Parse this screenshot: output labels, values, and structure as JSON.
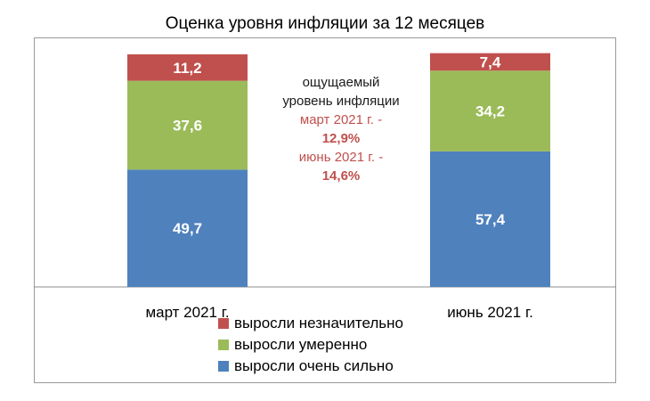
{
  "chart_data": {
    "type": "bar",
    "stacked": true,
    "title": "Оценка уровня инфляции за 12 месяцев",
    "categories": [
      "март 2021 г.",
      "июнь 2021 г."
    ],
    "series": [
      {
        "name": "выросли очень сильно",
        "values": [
          49.7,
          57.4
        ],
        "labels": [
          "49,7",
          "57,4"
        ],
        "color": "#4f81bd"
      },
      {
        "name": "выросли умеренно",
        "values": [
          37.6,
          34.2
        ],
        "labels": [
          "37,6",
          "34,2"
        ],
        "color": "#9bbb59"
      },
      {
        "name": "выросли незначительно",
        "values": [
          11.2,
          7.4
        ],
        "labels": [
          "11,2",
          "7,4"
        ],
        "color": "#c0504d"
      }
    ],
    "legend_position": "bottom",
    "annotation": {
      "line1": "ощущаемый",
      "line2": "уровень инфляции",
      "line3": "март 2021 г. -",
      "line4": "12,9%",
      "line5": "июнь 2021 г. -",
      "line6": "14,6%"
    }
  }
}
